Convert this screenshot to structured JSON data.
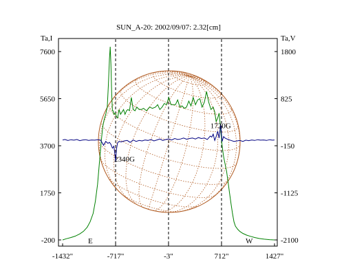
{
  "chart_data": {
    "type": "line",
    "title": "SUN_A-20: 2002/09/07: 2.32[cm]",
    "left_axis_label": "Ta,I",
    "right_axis_label": "Ta,V",
    "left_ticks": [
      "7600",
      "5650",
      "3700",
      "1750",
      "-200"
    ],
    "left_tick_values": [
      7600,
      5650,
      3700,
      1750,
      -200
    ],
    "right_ticks": [
      "1800",
      "825",
      "-150",
      "-1125",
      "-2100"
    ],
    "right_tick_values": [
      1800,
      825,
      -150,
      -1125,
      -2100
    ],
    "x_ticks": [
      "-1432\"",
      "-717\"",
      "-3\"",
      "712\"",
      "1427\""
    ],
    "x_tick_values": [
      -1432,
      -717,
      -3,
      712,
      1427
    ],
    "xlim": [
      -1432,
      1427
    ],
    "ylim_left": [
      -200,
      7600
    ],
    "ylim_right": [
      -2100,
      1800
    ],
    "limb_positions": [
      -717,
      -3,
      712
    ],
    "limb_labels": {
      "east": "E",
      "west": "W"
    },
    "annotations": [
      {
        "text": "2340G",
        "x": -717,
        "y_left": 3050
      },
      {
        "text": "1720G",
        "x": 580,
        "y_left": 4430
      }
    ],
    "series": [
      {
        "name": "I",
        "axis": "left",
        "color": "#008000",
        "x": [
          -1432,
          -1380,
          -1320,
          -1260,
          -1200,
          -1150,
          -1100,
          -1060,
          -1020,
          -990,
          -960,
          -935,
          -910,
          -890,
          -870,
          -850,
          -830,
          -815,
          -800,
          -790,
          -780,
          -770,
          -760,
          -750,
          -740,
          -730,
          -720,
          -705,
          -690,
          -670,
          -650,
          -630,
          -610,
          -590,
          -570,
          -550,
          -530,
          -505,
          -480,
          -455,
          -430,
          -400,
          -370,
          -340,
          -300,
          -260,
          -220,
          -180,
          -150,
          -120,
          -90,
          -60,
          -30,
          0,
          30,
          60,
          90,
          120,
          150,
          180,
          210,
          240,
          270,
          300,
          330,
          360,
          390,
          420,
          450,
          480,
          510,
          540,
          570,
          600,
          620,
          640,
          660,
          680,
          700,
          720,
          740,
          760,
          780,
          800,
          820,
          840,
          860,
          880,
          900,
          930,
          960,
          1000,
          1050,
          1100,
          1160,
          1220,
          1290,
          1360,
          1427
        ],
        "y": [
          -200,
          -150,
          -100,
          -40,
          50,
          160,
          330,
          560,
          900,
          1400,
          2100,
          3000,
          3900,
          4500,
          4800,
          5000,
          5300,
          6200,
          7300,
          7800,
          7100,
          5900,
          5150,
          5150,
          5000,
          5050,
          5050,
          4900,
          4850,
          5200,
          5000,
          5100,
          5200,
          5000,
          5150,
          5200,
          5150,
          5700,
          5200,
          5150,
          5300,
          5200,
          5200,
          5250,
          5150,
          5300,
          5250,
          5300,
          5400,
          5200,
          5300,
          5450,
          5400,
          5700,
          5400,
          5400,
          5400,
          5600,
          5300,
          5350,
          5250,
          5300,
          5550,
          5350,
          5700,
          5400,
          5600,
          5650,
          5300,
          5500,
          5950,
          5500,
          5200,
          5300,
          5100,
          4700,
          4850,
          5050,
          4400,
          3700,
          3250,
          2950,
          2650,
          2200,
          1750,
          1300,
          900,
          550,
          370,
          240,
          150,
          70,
          0,
          -50,
          -100,
          -140,
          -170,
          -190,
          -200
        ]
      },
      {
        "name": "V",
        "axis": "right",
        "color": "#000080",
        "x": [
          -1432,
          -1400,
          -1360,
          -1320,
          -1280,
          -1240,
          -1200,
          -1160,
          -1120,
          -1080,
          -1040,
          -1000,
          -960,
          -920,
          -880,
          -850,
          -820,
          -800,
          -780,
          -760,
          -740,
          -725,
          -717,
          -705,
          -690,
          -670,
          -640,
          -600,
          -560,
          -520,
          -480,
          -440,
          -400,
          -360,
          -320,
          -280,
          -240,
          -200,
          -160,
          -120,
          -80,
          -40,
          0,
          40,
          80,
          120,
          160,
          200,
          240,
          280,
          320,
          360,
          400,
          440,
          480,
          520,
          560,
          580,
          600,
          620,
          640,
          660,
          680,
          700,
          720,
          740,
          760,
          800,
          840,
          880,
          920,
          960,
          1000,
          1040,
          1080,
          1120,
          1160,
          1200,
          1240,
          1280,
          1320,
          1360,
          1400,
          1427
        ],
        "y": [
          -30,
          -20,
          -40,
          -25,
          -35,
          -20,
          -45,
          -30,
          -25,
          -40,
          -30,
          -35,
          -25,
          -30,
          -140,
          -60,
          -100,
          -80,
          -120,
          -200,
          -160,
          -350,
          -480,
          -220,
          -90,
          -60,
          -70,
          -50,
          -40,
          -80,
          -30,
          -60,
          -40,
          -50,
          -30,
          -40,
          -20,
          -50,
          -30,
          -10,
          -40,
          -20,
          -10,
          -30,
          0,
          -20,
          -10,
          10,
          -15,
          0,
          10,
          -10,
          20,
          0,
          10,
          -20,
          50,
          30,
          90,
          -40,
          40,
          150,
          10,
          300,
          -60,
          40,
          10,
          -20,
          -40,
          -60,
          -50,
          -40,
          -60,
          -35,
          -45,
          -30,
          -40,
          -25,
          -35,
          -30,
          -40,
          -25,
          -35,
          -30
        ]
      }
    ],
    "grid": false,
    "legend": "none"
  }
}
